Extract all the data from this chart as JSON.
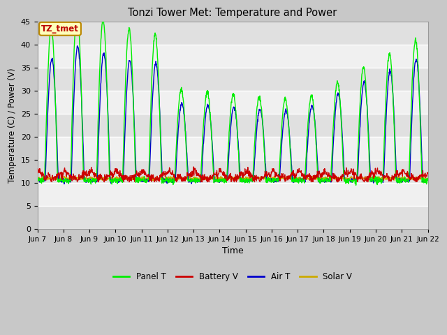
{
  "title": "Tonzi Tower Met: Temperature and Power",
  "xlabel": "Time",
  "ylabel": "Temperature (C) / Power (V)",
  "ylim": [
    0,
    45
  ],
  "yticks": [
    0,
    5,
    10,
    15,
    20,
    25,
    30,
    35,
    40,
    45
  ],
  "xtick_labels": [
    "Jun 7",
    "Jun 8",
    "Jun 9",
    "Jun 10",
    "Jun 11",
    "Jun 12",
    "Jun 13",
    "Jun 14",
    "Jun 15",
    "Jun 16",
    "Jun 17",
    "Jun 18",
    "Jun 19",
    "Jun 20",
    "Jun 21",
    "Jun 22"
  ],
  "panel_t_color": "#00ee00",
  "battery_v_color": "#cc0000",
  "air_t_color": "#0000cc",
  "solar_v_color": "#ccaa00",
  "fig_bg_color": "#c8c8c8",
  "plot_bg_light": "#f0f0f0",
  "plot_bg_dark": "#e0e0e0",
  "annotation_text": "TZ_tmet",
  "annotation_bg": "#ffffbb",
  "annotation_border": "#bb8800",
  "annotation_text_color": "#bb0000",
  "legend_labels": [
    "Panel T",
    "Battery V",
    "Air T",
    "Solar V"
  ]
}
